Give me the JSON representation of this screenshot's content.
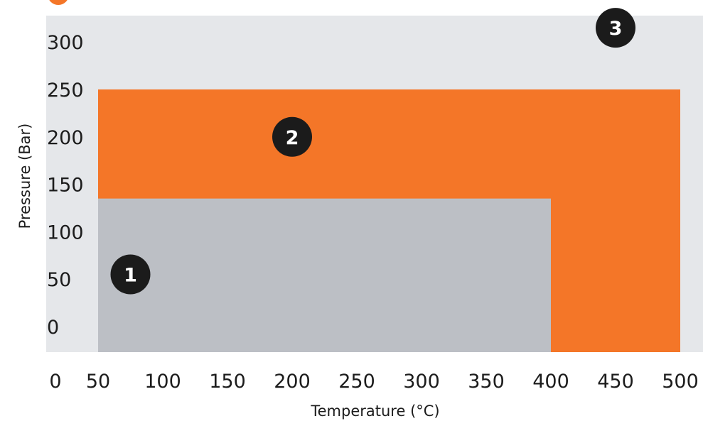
{
  "chart_data": {
    "type": "area",
    "title": "",
    "xlabel": "Temperature (°C)",
    "ylabel": "Pressure (Bar)",
    "x_ticks": [
      0,
      50,
      100,
      150,
      200,
      250,
      300,
      350,
      400,
      450,
      500
    ],
    "y_ticks": [
      0,
      50,
      100,
      150,
      200,
      250,
      300
    ],
    "xlim": [
      0,
      500
    ],
    "ylim": [
      0,
      300
    ],
    "grid": false,
    "legend": "none",
    "regions": [
      {
        "label": "1",
        "color": "#bcbfc5",
        "x_range": [
          50,
          400
        ],
        "y_range": [
          0,
          135
        ],
        "marker_at": [
          75,
          55
        ]
      },
      {
        "label": "2",
        "color": "#f47628",
        "x_range": [
          50,
          500
        ],
        "y_range": [
          0,
          250
        ],
        "marker_at": [
          200,
          200
        ]
      },
      {
        "label": "3",
        "color": "#e5e7ea",
        "x_range": [
          0,
          500
        ],
        "y_range": [
          0,
          300
        ],
        "marker_at": [
          450,
          315
        ]
      }
    ],
    "colors": {
      "background": "#e5e7ea",
      "marker_fill": "#1b1b1b",
      "marker_text": "#ffffff",
      "top_accent": "#f47628"
    }
  }
}
